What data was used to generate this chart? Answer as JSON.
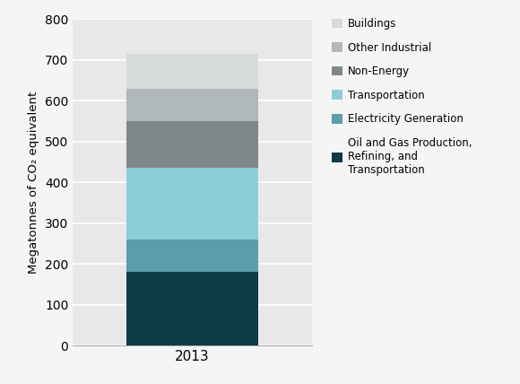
{
  "categories": [
    "2013"
  ],
  "segments": [
    {
      "label": "Oil and Gas Production,\nRefining, and\nTransportation",
      "value": 180,
      "color": "#0d3b47"
    },
    {
      "label": "Electricity Generation",
      "value": 80,
      "color": "#5b9daa"
    },
    {
      "label": "Transportation",
      "value": 175,
      "color": "#8dcdd8"
    },
    {
      "label": "Non-Energy",
      "value": 115,
      "color": "#7f8889"
    },
    {
      "label": "Other Industrial",
      "value": 80,
      "color": "#b0b8b9"
    },
    {
      "label": "Buildings",
      "value": 85,
      "color": "#d6dbdc"
    }
  ],
  "ylabel": "Megatonnes of CO₂ equivalent",
  "ylim": [
    0,
    800
  ],
  "yticks": [
    0,
    100,
    200,
    300,
    400,
    500,
    600,
    700,
    800
  ],
  "chart_bg_color": "#e8e8e8",
  "fig_bg_color": "#f5f5f5",
  "bar_width": 0.55,
  "legend_labels_order": [
    "Buildings",
    "Other Industrial",
    "Non-Energy",
    "Transportation",
    "Electricity Generation",
    "Oil and Gas Production,\nRefining, and\nTransportation"
  ]
}
